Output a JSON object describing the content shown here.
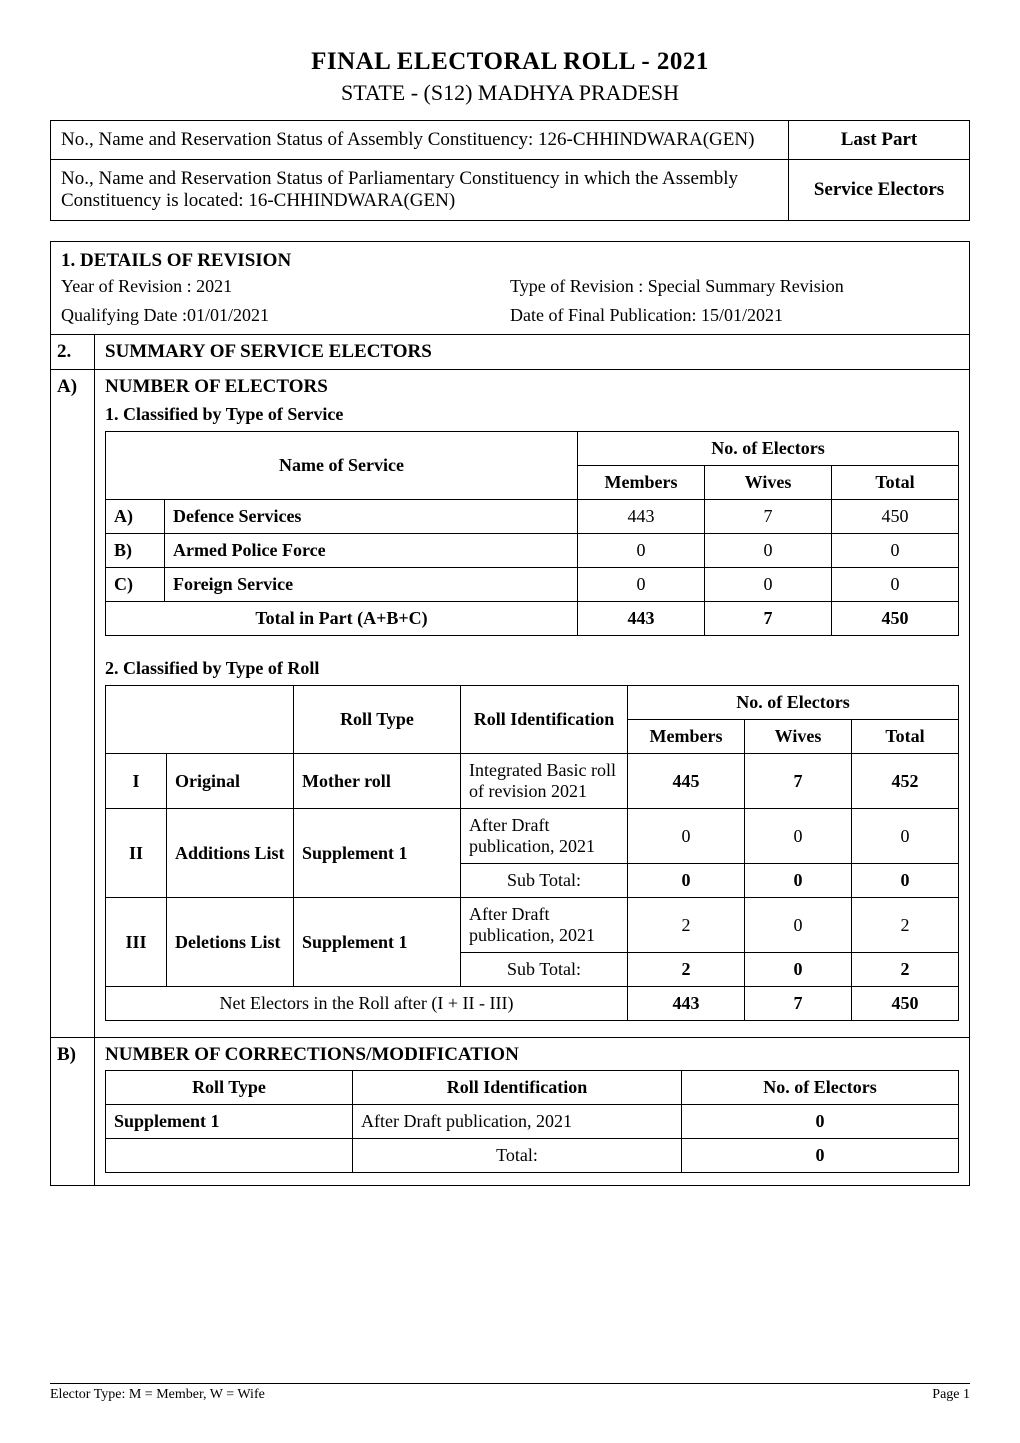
{
  "page": {
    "title": "FINAL ELECTORAL ROLL  -  2021",
    "subtitle": "STATE - (S12) MADHYA PRADESH",
    "footer_left": "Elector Type: M = Member, W = Wife",
    "footer_right": "Page 1"
  },
  "top_box": {
    "rows": [
      {
        "left": "No., Name and Reservation Status of Assembly Constituency:   126-CHHINDWARA(GEN)",
        "right": "Last Part"
      },
      {
        "left": "No., Name and Reservation Status of Parliamentary Constituency in which the Assembly Constituency is located:    16-CHHINDWARA(GEN)",
        "right": "Service Electors"
      }
    ]
  },
  "details": {
    "heading": "1. DETAILS OF REVISION",
    "meta": {
      "year_label": "Year of Revision : 2021",
      "type_label": "Type of Revision : Special Summary Revision",
      "qdate_label": "Qualifying Date :01/01/2021",
      "pubdate_label": "Date of  Final Publication: 15/01/2021"
    }
  },
  "section2": {
    "num": "2.",
    "heading": "SUMMARY OF SERVICE ELECTORS"
  },
  "sectionA": {
    "num": "A)",
    "heading": "NUMBER OF ELECTORS",
    "t1": {
      "heading": "1. Classified by Type of Service",
      "name_of_service": "Name of Service",
      "no_of_electors": "No. of Electors",
      "cols": {
        "members": "Members",
        "wives": "Wives",
        "total": "Total"
      },
      "rows": [
        {
          "label": "A)",
          "name": "Defence Services",
          "members": "443",
          "wives": "7",
          "total": "450"
        },
        {
          "label": "B)",
          "name": "Armed Police Force",
          "members": "0",
          "wives": "0",
          "total": "0"
        },
        {
          "label": "C)",
          "name": "Foreign Service",
          "members": "0",
          "wives": "0",
          "total": "0"
        }
      ],
      "total_row": {
        "label": "Total in Part (A+B+C)",
        "members": "443",
        "wives": "7",
        "total": "450"
      }
    },
    "t2": {
      "heading": "2. Classified by Type of Roll",
      "cols": {
        "roll_type": "Roll Type",
        "roll_id": "Roll Identification",
        "no_of_electors": "No. of Electors",
        "members": "Members",
        "wives": "Wives",
        "total": "Total"
      },
      "groups": [
        {
          "num": "I",
          "name": "Original",
          "roll_type": "Mother roll",
          "rows": [
            {
              "id": "Integrated Basic roll of revision 2021",
              "members": "445",
              "wives": "7",
              "total": "452",
              "bold": true
            }
          ]
        },
        {
          "num": "II",
          "name": "Additions List",
          "roll_type": "Supplement 1",
          "rows": [
            {
              "id": "After Draft publication, 2021",
              "members": "0",
              "wives": "0",
              "total": "0",
              "bold": false
            },
            {
              "id": "Sub Total:",
              "members": "0",
              "wives": "0",
              "total": "0",
              "bold": true,
              "center_id": true
            }
          ]
        },
        {
          "num": "III",
          "name": "Deletions List",
          "roll_type": "Supplement 1",
          "rows": [
            {
              "id": "After Draft publication, 2021",
              "members": "2",
              "wives": "0",
              "total": "2",
              "bold": false
            },
            {
              "id": "Sub Total:",
              "members": "2",
              "wives": "0",
              "total": "2",
              "bold": true,
              "center_id": true
            }
          ]
        }
      ],
      "net_row": {
        "label": "Net Electors in the Roll after (I + II - III)",
        "members": "443",
        "wives": "7",
        "total": "450"
      }
    }
  },
  "sectionB": {
    "num": "B)",
    "heading": "NUMBER OF CORRECTIONS/MODIFICATION",
    "cols": {
      "roll_type": "Roll Type",
      "roll_id": "Roll Identification",
      "no_of_electors": "No. of Electors"
    },
    "rows": [
      {
        "type": "Supplement 1",
        "id": "After Draft publication, 2021",
        "electors": "0"
      }
    ],
    "total_row": {
      "label": "Total:",
      "electors": "0"
    }
  }
}
